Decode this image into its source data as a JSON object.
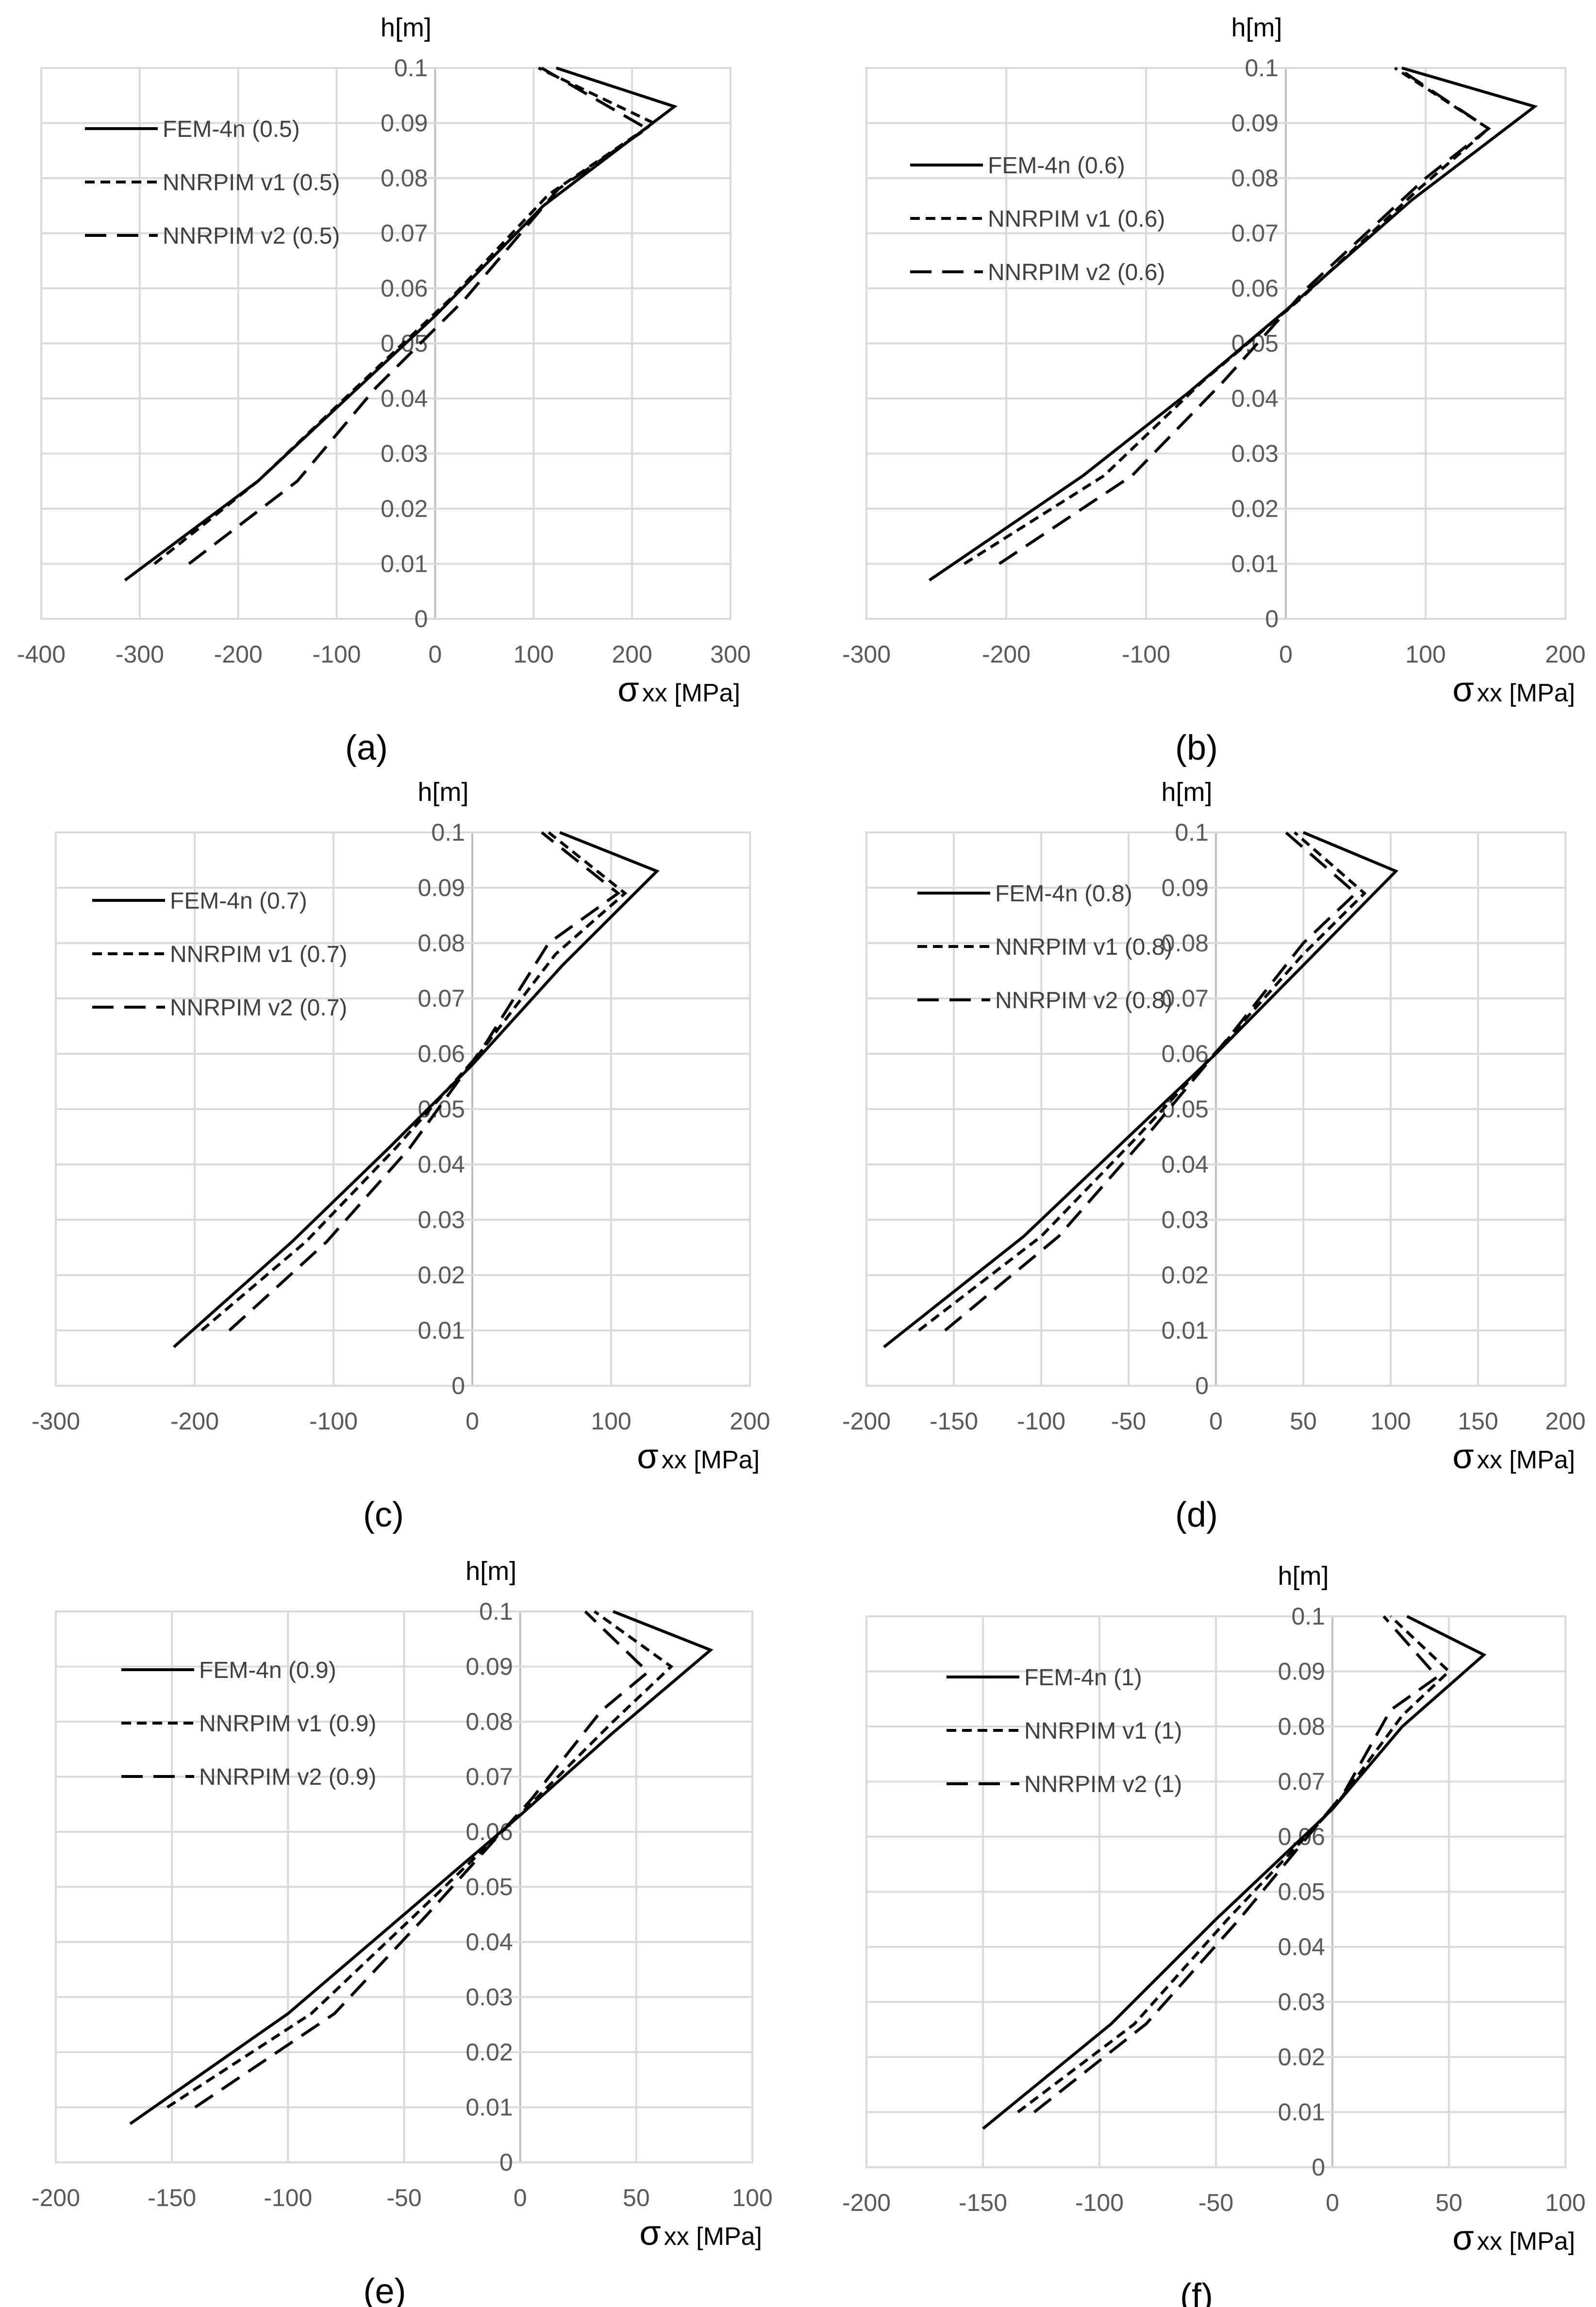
{
  "figure": {
    "line_color": "#000000",
    "grid_color": "#d9d9d9",
    "background": "#ffffff"
  },
  "chart_data": [
    {
      "id": "a",
      "type": "line",
      "panel_label": "(a)",
      "ylabel": "h[m]",
      "xlabel_symbol": "σ",
      "xlabel_rest": "xx [MPa]",
      "xlim": [
        -400,
        300
      ],
      "ylim": [
        0,
        0.1
      ],
      "xticks": [
        -400,
        -300,
        -200,
        -100,
        0,
        100,
        200,
        300
      ],
      "yticks": [
        0,
        0.01,
        0.02,
        0.03,
        0.04,
        0.05,
        0.06,
        0.07,
        0.08,
        0.09,
        0.1
      ],
      "yticklabels": [
        "0",
        "0.01",
        "0.02",
        "0.03",
        "0.04",
        "0.05",
        "0.06",
        "0.07",
        "0.08",
        "0.09",
        "0.1"
      ],
      "series": [
        {
          "name": "FEM-4n (0.5)",
          "style": "solid",
          "x": [
            -315,
            -180,
            -90,
            0,
            110,
            243,
            123
          ],
          "y": [
            0.007,
            0.025,
            0.04,
            0.055,
            0.075,
            0.093,
            0.1
          ]
        },
        {
          "name": "NNRPIM v1 (0.5)",
          "style": "dotted",
          "x": [
            -285,
            -180,
            -80,
            15,
            115,
            222,
            105
          ],
          "y": [
            0.01,
            0.025,
            0.042,
            0.058,
            0.077,
            0.09,
            0.1
          ]
        },
        {
          "name": "NNRPIM v2 (0.5)",
          "style": "dashed",
          "x": [
            -250,
            -140,
            -60,
            30,
            125,
            215,
            108
          ],
          "y": [
            0.01,
            0.025,
            0.042,
            0.058,
            0.078,
            0.089,
            0.1
          ]
        }
      ]
    },
    {
      "id": "b",
      "type": "line",
      "panel_label": "(b)",
      "ylabel": "h[m]",
      "xlabel_symbol": "σ",
      "xlabel_rest": "xx [MPa]",
      "xlim": [
        -300,
        200
      ],
      "ylim": [
        0,
        0.1
      ],
      "xticks": [
        -300,
        -200,
        -100,
        0,
        100,
        200
      ],
      "yticks": [
        0,
        0.01,
        0.02,
        0.03,
        0.04,
        0.05,
        0.06,
        0.07,
        0.08,
        0.09,
        0.1
      ],
      "yticklabels": [
        "0",
        "0.01",
        "0.02",
        "0.03",
        "0.04",
        "0.05",
        "0.06",
        "0.07",
        "0.08",
        "0.09",
        "0.1"
      ],
      "series": [
        {
          "name": "FEM-4n (0.6)",
          "style": "solid",
          "x": [
            -255,
            -145,
            -70,
            0,
            90,
            178,
            83
          ],
          "y": [
            0.007,
            0.026,
            0.041,
            0.056,
            0.076,
            0.093,
            0.1
          ]
        },
        {
          "name": "NNRPIM v1 (0.6)",
          "style": "dotted",
          "x": [
            -230,
            -130,
            -60,
            10,
            95,
            145,
            78
          ],
          "y": [
            0.01,
            0.026,
            0.043,
            0.058,
            0.078,
            0.089,
            0.1
          ]
        },
        {
          "name": "NNRPIM v2 (0.6)",
          "style": "dashed",
          "x": [
            -205,
            -110,
            -45,
            15,
            100,
            145,
            80
          ],
          "y": [
            0.01,
            0.026,
            0.043,
            0.06,
            0.08,
            0.089,
            0.1
          ]
        }
      ]
    },
    {
      "id": "c",
      "type": "line",
      "panel_label": "(c)",
      "ylabel": "h[m]",
      "xlabel_symbol": "σ",
      "xlabel_rest": "xx [MPa]",
      "xlim": [
        -300,
        200
      ],
      "ylim": [
        0,
        0.1
      ],
      "xticks": [
        -300,
        -200,
        -100,
        0,
        100,
        200
      ],
      "yticks": [
        0,
        0.01,
        0.02,
        0.03,
        0.04,
        0.05,
        0.06,
        0.07,
        0.08,
        0.09,
        0.1
      ],
      "yticklabels": [
        "0",
        "0.01",
        "0.02",
        "0.03",
        "0.04",
        "0.05",
        "0.06",
        "0.07",
        "0.08",
        "0.09",
        "0.1"
      ],
      "series": [
        {
          "name": "FEM-4n (0.7)",
          "style": "solid",
          "x": [
            -215,
            -130,
            -60,
            0,
            65,
            133,
            63
          ],
          "y": [
            0.007,
            0.026,
            0.043,
            0.058,
            0.076,
            0.093,
            0.1
          ]
        },
        {
          "name": "NNRPIM v1 (0.7)",
          "style": "dotted",
          "x": [
            -195,
            -120,
            -55,
            5,
            60,
            110,
            55
          ],
          "y": [
            0.01,
            0.026,
            0.043,
            0.06,
            0.078,
            0.089,
            0.1
          ]
        },
        {
          "name": "NNRPIM v2 (0.7)",
          "style": "dashed",
          "x": [
            -175,
            -105,
            -45,
            10,
            55,
            105,
            50
          ],
          "y": [
            0.01,
            0.026,
            0.043,
            0.062,
            0.08,
            0.089,
            0.1
          ]
        }
      ]
    },
    {
      "id": "d",
      "type": "line",
      "panel_label": "(d)",
      "ylabel": "h[m]",
      "xlabel_symbol": "σ",
      "xlabel_rest": "xx [MPa]",
      "xlim": [
        -200,
        200
      ],
      "ylim": [
        0,
        0.1
      ],
      "xticks": [
        -200,
        -150,
        -100,
        -50,
        0,
        50,
        100,
        150,
        200
      ],
      "yticks": [
        0,
        0.01,
        0.02,
        0.03,
        0.04,
        0.05,
        0.06,
        0.07,
        0.08,
        0.09,
        0.1
      ],
      "yticklabels": [
        "0",
        "0.01",
        "0.02",
        "0.03",
        "0.04",
        "0.05",
        "0.06",
        "0.07",
        "0.08",
        "0.09",
        "0.1"
      ],
      "series": [
        {
          "name": "FEM-4n (0.8)",
          "style": "solid",
          "x": [
            -190,
            -110,
            -50,
            0,
            50,
            103,
            50
          ],
          "y": [
            0.007,
            0.027,
            0.045,
            0.06,
            0.076,
            0.093,
            0.1
          ]
        },
        {
          "name": "NNRPIM v1 (0.8)",
          "style": "dotted",
          "x": [
            -170,
            -100,
            -45,
            5,
            50,
            85,
            45
          ],
          "y": [
            0.01,
            0.027,
            0.045,
            0.062,
            0.078,
            0.089,
            0.1
          ]
        },
        {
          "name": "NNRPIM v2 (0.8)",
          "style": "dashed",
          "x": [
            -155,
            -90,
            -40,
            10,
            50,
            80,
            40
          ],
          "y": [
            0.01,
            0.027,
            0.045,
            0.064,
            0.08,
            0.089,
            0.1
          ]
        }
      ]
    },
    {
      "id": "e",
      "type": "line",
      "panel_label": "(e)",
      "ylabel": "h[m]",
      "xlabel_symbol": "σ",
      "xlabel_rest": "xx [MPa]",
      "xlim": [
        -200,
        100
      ],
      "ylim": [
        0,
        0.1
      ],
      "xticks": [
        -200,
        -150,
        -100,
        -50,
        0,
        50,
        100
      ],
      "yticks": [
        0,
        0.01,
        0.02,
        0.03,
        0.04,
        0.05,
        0.06,
        0.07,
        0.08,
        0.09,
        0.1
      ],
      "yticklabels": [
        "0",
        "0.01",
        "0.02",
        "0.03",
        "0.04",
        "0.05",
        "0.06",
        "0.07",
        "0.08",
        "0.09",
        "0.1"
      ],
      "series": [
        {
          "name": "FEM-4n (0.9)",
          "style": "solid",
          "x": [
            -168,
            -100,
            -50,
            0,
            40,
            82,
            40
          ],
          "y": [
            0.007,
            0.027,
            0.045,
            0.063,
            0.078,
            0.093,
            0.1
          ]
        },
        {
          "name": "NNRPIM v1 (0.9)",
          "style": "dotted",
          "x": [
            -152,
            -90,
            -45,
            2,
            40,
            65,
            32
          ],
          "y": [
            0.01,
            0.027,
            0.045,
            0.064,
            0.08,
            0.09,
            0.1
          ]
        },
        {
          "name": "NNRPIM v2 (0.9)",
          "style": "dashed",
          "x": [
            -140,
            -80,
            -40,
            5,
            35,
            55,
            28
          ],
          "y": [
            0.01,
            0.027,
            0.045,
            0.066,
            0.082,
            0.089,
            0.1
          ]
        }
      ]
    },
    {
      "id": "f",
      "type": "line",
      "panel_label": "(f)",
      "ylabel": "h[m]",
      "xlabel_symbol": "σ",
      "xlabel_rest": "xx [MPa]",
      "xlim": [
        -200,
        100
      ],
      "ylim": [
        0,
        0.1
      ],
      "xticks": [
        -200,
        -150,
        -100,
        -50,
        0,
        50,
        100
      ],
      "yticks": [
        0,
        0.01,
        0.02,
        0.03,
        0.04,
        0.05,
        0.06,
        0.07,
        0.08,
        0.09,
        0.1
      ],
      "yticklabels": [
        "0",
        "0.01",
        "0.02",
        "0.03",
        "0.04",
        "0.05",
        "0.06",
        "0.07",
        "0.08",
        "0.09",
        "0.1"
      ],
      "series": [
        {
          "name": "FEM-4n (1)",
          "style": "solid",
          "x": [
            -150,
            -95,
            -50,
            0,
            30,
            65,
            32
          ],
          "y": [
            0.007,
            0.026,
            0.045,
            0.065,
            0.08,
            0.093,
            0.1
          ]
        },
        {
          "name": "NNRPIM v1 (1)",
          "style": "dotted",
          "x": [
            -135,
            -85,
            -45,
            2,
            30,
            50,
            25
          ],
          "y": [
            0.01,
            0.026,
            0.045,
            0.066,
            0.082,
            0.09,
            0.1
          ]
        },
        {
          "name": "NNRPIM v2 (1)",
          "style": "dashed",
          "x": [
            -128,
            -80,
            -40,
            5,
            25,
            45,
            22
          ],
          "y": [
            0.01,
            0.026,
            0.045,
            0.068,
            0.083,
            0.089,
            0.1
          ]
        }
      ]
    }
  ]
}
